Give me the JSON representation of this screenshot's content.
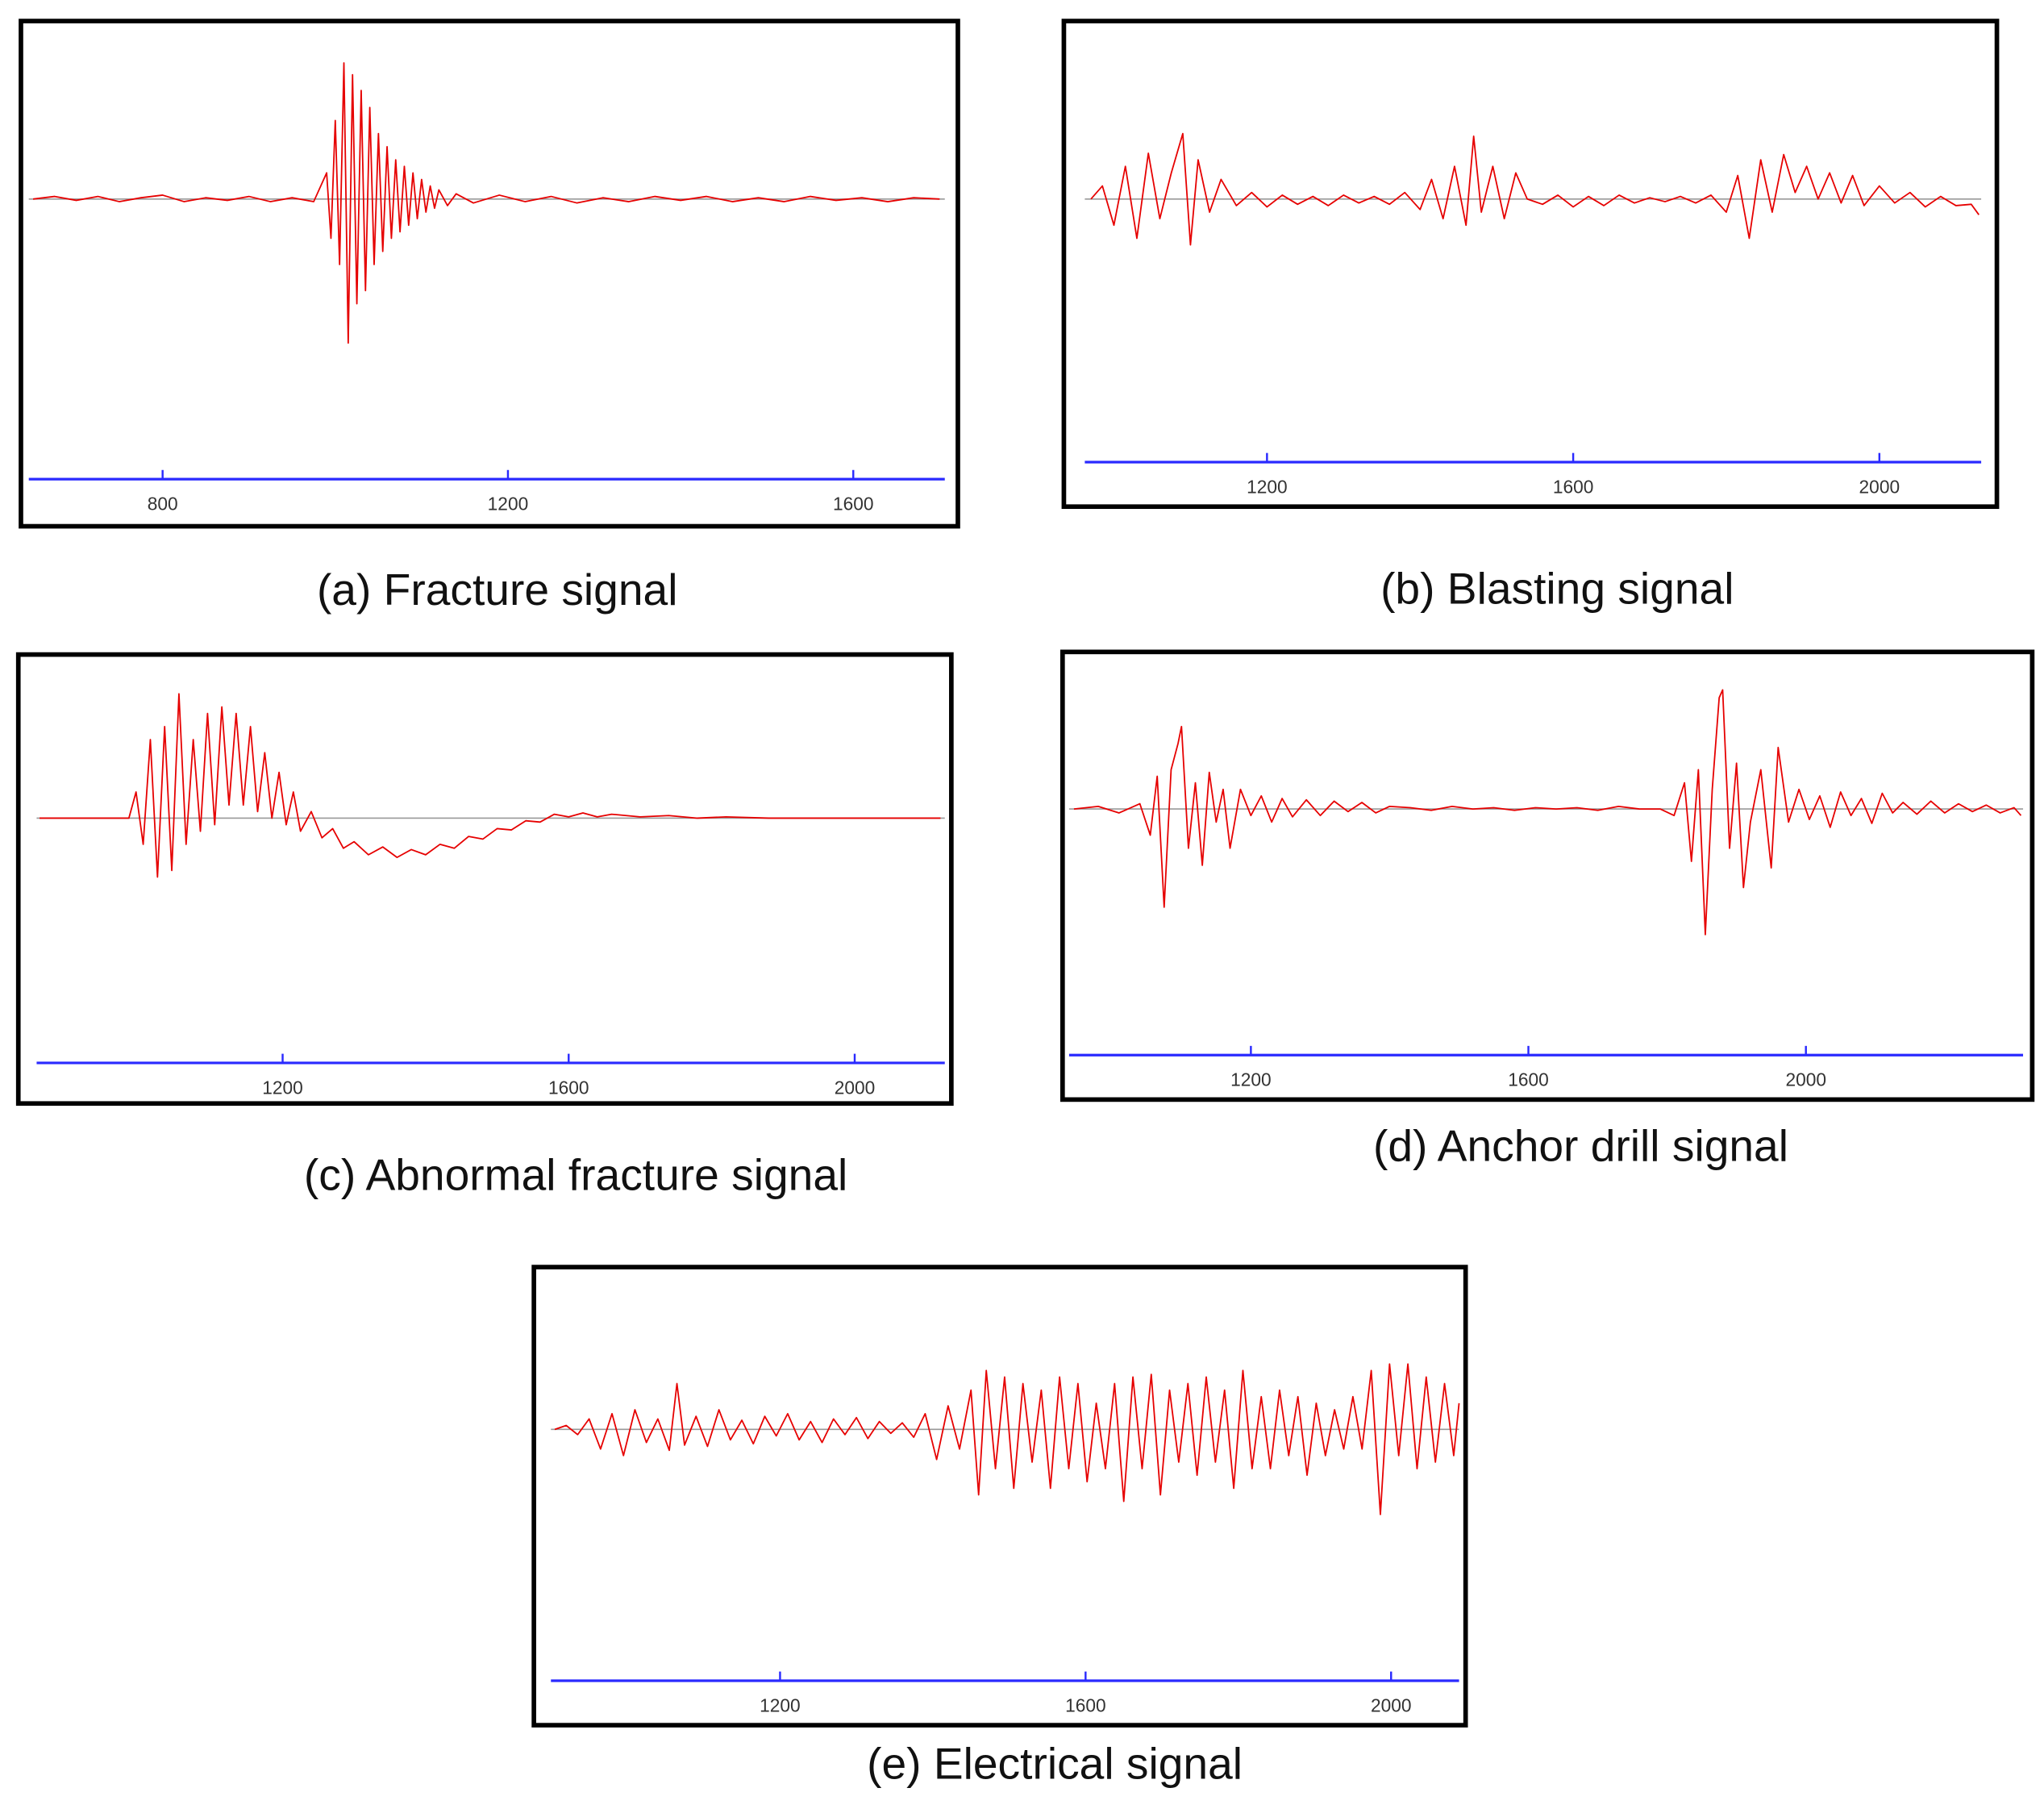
{
  "chart_data": [
    {
      "type": "line",
      "caption": "(a) Fracture signal",
      "color": "#e60000",
      "xlim": [
        645,
        1706
      ],
      "xticks": [
        800,
        1200,
        1600
      ],
      "ylim": [
        -21,
        12
      ],
      "x": [
        650,
        675,
        700,
        725,
        750,
        775,
        800,
        825,
        850,
        875,
        900,
        925,
        950,
        975,
        990,
        995,
        1000,
        1005,
        1010,
        1015,
        1020,
        1025,
        1030,
        1035,
        1040,
        1045,
        1050,
        1055,
        1060,
        1065,
        1070,
        1075,
        1080,
        1085,
        1090,
        1095,
        1100,
        1105,
        1110,
        1115,
        1120,
        1130,
        1140,
        1160,
        1190,
        1220,
        1250,
        1280,
        1310,
        1340,
        1370,
        1400,
        1430,
        1460,
        1490,
        1520,
        1550,
        1580,
        1610,
        1640,
        1670,
        1700
      ],
      "values": [
        0,
        0.2,
        -0.1,
        0.2,
        -0.2,
        0.1,
        0.3,
        -0.2,
        0.1,
        -0.1,
        0.2,
        -0.2,
        0.1,
        -0.2,
        2,
        -3,
        6,
        -5,
        10.4,
        -11,
        9.5,
        -8,
        8.3,
        -7,
        7,
        -5,
        5,
        -4,
        4,
        -3,
        3,
        -2.5,
        2.5,
        -2,
        2,
        -1.5,
        1.5,
        -1,
        1,
        -0.7,
        0.7,
        -0.5,
        0.4,
        -0.3,
        0.3,
        -0.2,
        0.2,
        -0.3,
        0.1,
        -0.2,
        0.2,
        -0.1,
        0.2,
        -0.2,
        0.1,
        -0.2,
        0.2,
        -0.1,
        0.1,
        -0.2,
        0.1,
        0
      ]
    },
    {
      "type": "line",
      "caption": "(b) Blasting signal",
      "color": "#e60000",
      "xlim": [
        962,
        2133
      ],
      "xticks": [
        1200,
        1600,
        2000
      ],
      "ylim": [
        -20,
        12
      ],
      "x": [
        970,
        985,
        1000,
        1015,
        1030,
        1045,
        1060,
        1075,
        1090,
        1100,
        1110,
        1125,
        1140,
        1160,
        1180,
        1200,
        1220,
        1240,
        1260,
        1280,
        1300,
        1320,
        1340,
        1360,
        1380,
        1400,
        1415,
        1430,
        1445,
        1460,
        1470,
        1480,
        1495,
        1510,
        1525,
        1540,
        1560,
        1580,
        1600,
        1620,
        1640,
        1660,
        1680,
        1700,
        1720,
        1740,
        1760,
        1780,
        1800,
        1815,
        1830,
        1845,
        1860,
        1875,
        1890,
        1905,
        1920,
        1935,
        1950,
        1965,
        1980,
        2000,
        2020,
        2040,
        2060,
        2080,
        2100,
        2120,
        2130
      ],
      "values": [
        0,
        1,
        -2,
        2.5,
        -3,
        3.5,
        -1.5,
        2,
        5,
        -3.5,
        3,
        -1,
        1.5,
        -0.5,
        0.5,
        -0.6,
        0.3,
        -0.4,
        0.2,
        -0.5,
        0.3,
        -0.3,
        0.2,
        -0.4,
        0.5,
        -0.8,
        1.5,
        -1.5,
        2.5,
        -2,
        4.8,
        -1,
        2.5,
        -1.5,
        2,
        0,
        -0.4,
        0.3,
        -0.6,
        0.2,
        -0.5,
        0.3,
        -0.3,
        0.1,
        -0.2,
        0.2,
        -0.3,
        0.3,
        -1,
        1.8,
        -3,
        3,
        -1,
        3.4,
        0.5,
        2.5,
        0,
        2,
        -0.3,
        1.8,
        -0.5,
        1,
        -0.3,
        0.5,
        -0.6,
        0.2,
        -0.5,
        -0.4,
        -1.2
      ]
    },
    {
      "type": "line",
      "caption": "(c) Abnormal fracture signal",
      "color": "#e60000",
      "xlim": [
        856,
        2126
      ],
      "xticks": [
        1200,
        1600,
        2000
      ],
      "ylim": [
        -19,
        11
      ],
      "x": [
        860,
        985,
        995,
        1005,
        1015,
        1025,
        1035,
        1045,
        1055,
        1065,
        1075,
        1085,
        1095,
        1105,
        1115,
        1125,
        1135,
        1145,
        1155,
        1165,
        1175,
        1185,
        1195,
        1205,
        1215,
        1225,
        1240,
        1255,
        1270,
        1285,
        1300,
        1320,
        1340,
        1360,
        1380,
        1400,
        1420,
        1440,
        1460,
        1480,
        1500,
        1520,
        1540,
        1560,
        1580,
        1600,
        1620,
        1640,
        1660,
        1700,
        1740,
        1780,
        1820,
        1880,
        1950,
        2050,
        2120
      ],
      "values": [
        0,
        0,
        2,
        -2,
        6,
        -4.5,
        7,
        -4,
        9.5,
        -2,
        6,
        -1,
        8,
        -0.5,
        8.5,
        1,
        8,
        1,
        7,
        0.5,
        5,
        0,
        3.5,
        -0.5,
        2,
        -1,
        0.5,
        -1.5,
        -0.8,
        -2.3,
        -1.8,
        -2.8,
        -2.2,
        -3,
        -2.4,
        -2.8,
        -2,
        -2.3,
        -1.4,
        -1.6,
        -0.8,
        -0.9,
        -0.2,
        -0.3,
        0.3,
        0.1,
        0.4,
        0.1,
        0.3,
        0.1,
        0.2,
        0,
        0.1,
        0,
        0,
        0,
        0
      ]
    },
    {
      "type": "line",
      "caption": "(d) Anchor drill signal",
      "color": "#e60000",
      "xlim": [
        938,
        2313
      ],
      "xticks": [
        1200,
        1600,
        2000
      ],
      "ylim": [
        -19,
        11
      ],
      "x": [
        945,
        980,
        1010,
        1040,
        1055,
        1065,
        1075,
        1085,
        1095,
        1100,
        1110,
        1120,
        1130,
        1140,
        1150,
        1160,
        1170,
        1185,
        1200,
        1215,
        1230,
        1245,
        1260,
        1280,
        1300,
        1320,
        1340,
        1360,
        1380,
        1400,
        1430,
        1460,
        1490,
        1520,
        1550,
        1580,
        1610,
        1640,
        1670,
        1700,
        1730,
        1760,
        1790,
        1810,
        1825,
        1835,
        1845,
        1855,
        1865,
        1875,
        1880,
        1890,
        1900,
        1910,
        1920,
        1935,
        1950,
        1960,
        1975,
        1990,
        2005,
        2020,
        2035,
        2050,
        2065,
        2080,
        2095,
        2110,
        2125,
        2140,
        2160,
        2180,
        2200,
        2220,
        2240,
        2260,
        2280,
        2300,
        2310
      ],
      "values": [
        0,
        0.2,
        -0.3,
        0.4,
        -2,
        2.5,
        -7.5,
        3,
        5,
        6.3,
        -3,
        2,
        -4.3,
        2.8,
        -1,
        1.5,
        -3,
        1.5,
        -0.5,
        1,
        -1,
        0.8,
        -0.6,
        0.7,
        -0.5,
        0.6,
        -0.2,
        0.5,
        -0.3,
        0.2,
        0.1,
        -0.1,
        0.2,
        0,
        0.1,
        -0.1,
        0.1,
        0,
        0.1,
        -0.1,
        0.2,
        0,
        0,
        -0.5,
        2,
        -4,
        3,
        -9.6,
        1.5,
        8.5,
        9.1,
        -3,
        3.5,
        -6,
        -1,
        3,
        -4.5,
        4.7,
        -1,
        1.5,
        -0.8,
        1,
        -1.4,
        1.3,
        -0.5,
        0.8,
        -1.1,
        1.2,
        -0.3,
        0.5,
        -0.4,
        0.6,
        -0.3,
        0.4,
        -0.2,
        0.3,
        -0.3,
        0.1,
        -0.5
      ]
    },
    {
      "type": "line",
      "caption": "(e) Electrical signal",
      "color": "#e60000",
      "xlim": [
        900,
        2089
      ],
      "xticks": [
        1200,
        1600,
        2000
      ],
      "ylim": [
        -19,
        11
      ],
      "x": [
        905,
        920,
        935,
        950,
        965,
        980,
        995,
        1010,
        1025,
        1040,
        1055,
        1065,
        1075,
        1090,
        1105,
        1120,
        1135,
        1150,
        1165,
        1180,
        1195,
        1210,
        1225,
        1240,
        1255,
        1270,
        1285,
        1300,
        1315,
        1330,
        1345,
        1360,
        1375,
        1390,
        1405,
        1420,
        1435,
        1450,
        1460,
        1470,
        1482,
        1494,
        1506,
        1518,
        1530,
        1542,
        1554,
        1566,
        1578,
        1590,
        1602,
        1614,
        1626,
        1638,
        1650,
        1662,
        1674,
        1686,
        1698,
        1710,
        1722,
        1734,
        1746,
        1758,
        1770,
        1782,
        1794,
        1806,
        1818,
        1830,
        1842,
        1854,
        1866,
        1878,
        1890,
        1902,
        1914,
        1926,
        1938,
        1950,
        1962,
        1974,
        1986,
        1998,
        2010,
        2022,
        2034,
        2046,
        2058,
        2070,
        2082,
        2089
      ],
      "values": [
        0,
        0.3,
        -0.4,
        0.8,
        -1.5,
        1.2,
        -2,
        1.5,
        -1,
        0.8,
        -1.6,
        3.5,
        -1.2,
        1,
        -1.3,
        1.5,
        -0.8,
        0.7,
        -1.1,
        1,
        -0.5,
        1.2,
        -0.8,
        0.6,
        -1,
        0.8,
        -0.4,
        0.9,
        -0.7,
        0.6,
        -0.3,
        0.5,
        -0.6,
        1.2,
        -2.3,
        1.8,
        -1.5,
        3,
        -5,
        4.5,
        -3,
        4,
        -4.5,
        3.5,
        -2.5,
        3,
        -4.5,
        4,
        -3,
        3.5,
        -4,
        2,
        -3,
        3.5,
        -5.5,
        4,
        -3,
        4.2,
        -5,
        3,
        -2.5,
        3.5,
        -3.5,
        4,
        -2.5,
        3,
        -4.5,
        4.5,
        -3,
        2.5,
        -3,
        3,
        -2,
        2.5,
        -3.5,
        2,
        -2,
        1.5,
        -1.5,
        2.5,
        -1.5,
        4.5,
        -6.5,
        5,
        -2,
        5,
        -3,
        4,
        -2.5,
        3.5,
        -2,
        2
      ]
    }
  ]
}
